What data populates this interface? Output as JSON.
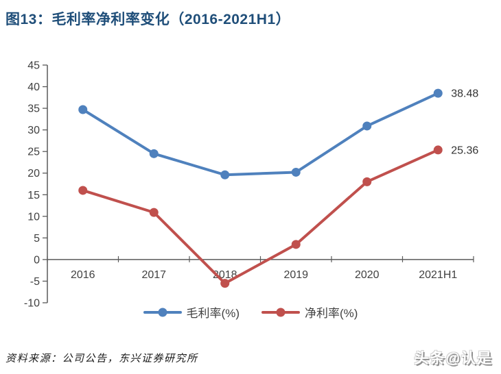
{
  "title": "图13：毛利率净利率变化（2016-2021H1）",
  "source": "资料来源：公司公告，东兴证券研究所",
  "watermark": "头条@认是",
  "colors": {
    "title": "#1F4E79",
    "axis": "#595959",
    "text": "#404040",
    "gross": "#4F81BD",
    "net": "#C0504D"
  },
  "chart_data": {
    "type": "line",
    "categories": [
      "2016",
      "2017",
      "2018",
      "2019",
      "2020",
      "2021H1"
    ],
    "series": [
      {
        "name": "毛利率(%)",
        "color": "#4F81BD",
        "values": [
          34.7,
          24.5,
          19.6,
          20.2,
          30.9,
          38.48
        ],
        "end_label": "38.48"
      },
      {
        "name": "净利率(%)",
        "color": "#C0504D",
        "values": [
          16.0,
          10.9,
          -5.5,
          3.5,
          18.0,
          25.36
        ],
        "end_label": "25.36"
      }
    ],
    "title": "毛利率净利率变化（2016-2021H1）",
    "xlabel": "",
    "ylabel": "",
    "ylim": [
      -10,
      45
    ],
    "yticks": [
      45,
      40,
      35,
      30,
      25,
      20,
      15,
      10,
      5,
      0,
      -5,
      -10
    ],
    "grid": false,
    "legend_position": "bottom"
  }
}
